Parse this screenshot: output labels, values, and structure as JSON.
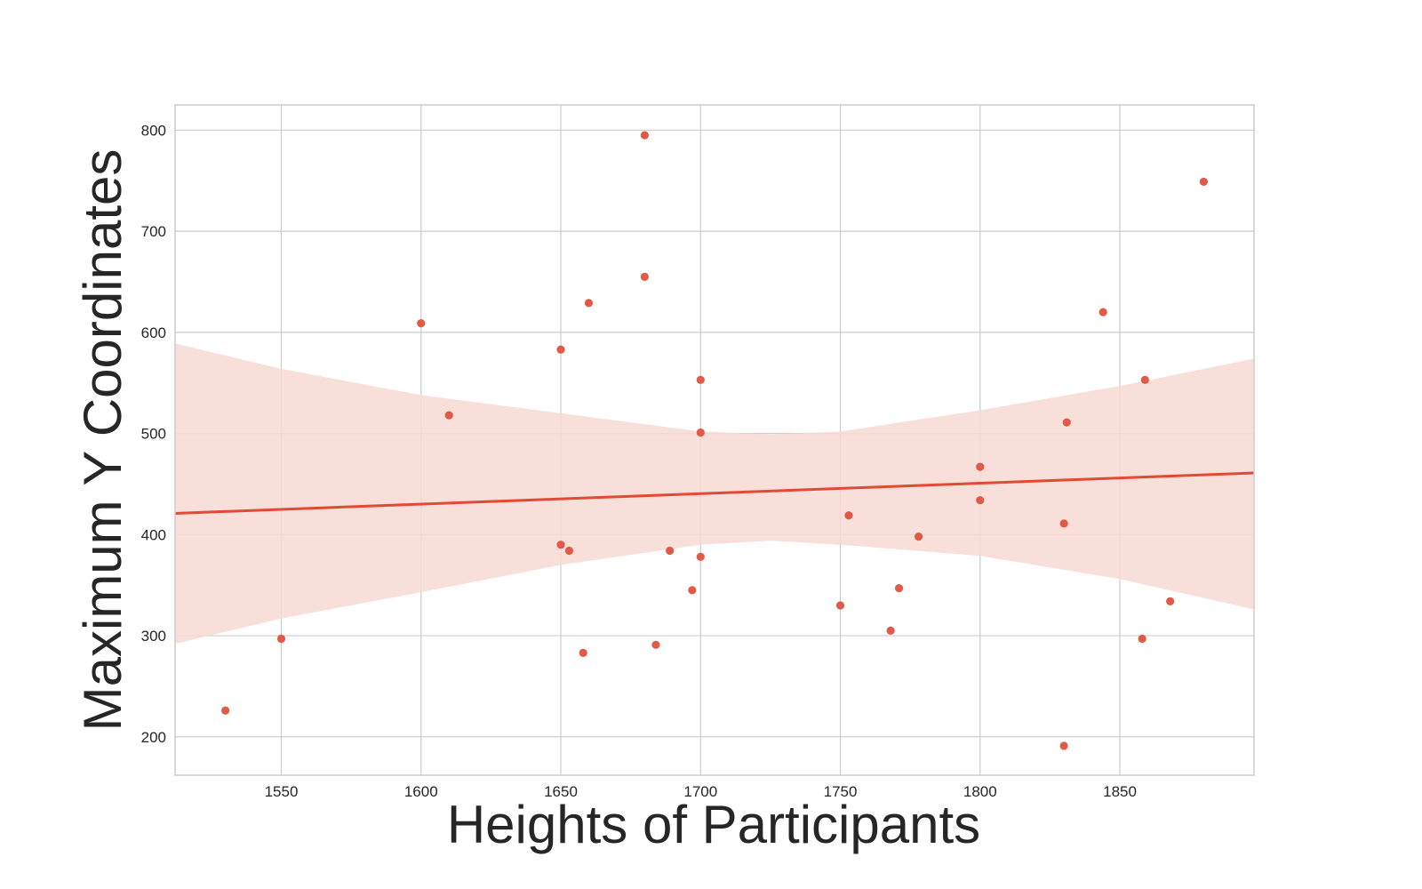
{
  "chart_data": {
    "type": "scatter",
    "title": "",
    "xlabel": "Heights of Participants",
    "ylabel": "Maximum Y Coordinates",
    "xlim": [
      1512,
      1898
    ],
    "ylim": [
      162,
      825
    ],
    "xticks": [
      1550,
      1600,
      1650,
      1700,
      1750,
      1800,
      1850
    ],
    "yticks": [
      200,
      300,
      400,
      500,
      600,
      700,
      800
    ],
    "grid": true,
    "colors": {
      "points": "#e05a47",
      "line": "#e24a33",
      "band": "#f7d9d4",
      "grid": "#cccccc",
      "text": "#262626"
    },
    "points": [
      [
        1530,
        226
      ],
      [
        1550,
        297
      ],
      [
        1600,
        609
      ],
      [
        1610,
        518
      ],
      [
        1650,
        583
      ],
      [
        1650,
        390
      ],
      [
        1653,
        384
      ],
      [
        1658,
        283
      ],
      [
        1660,
        629
      ],
      [
        1680,
        795
      ],
      [
        1680,
        655
      ],
      [
        1684,
        291
      ],
      [
        1689,
        384
      ],
      [
        1697,
        345
      ],
      [
        1700,
        553
      ],
      [
        1700,
        501
      ],
      [
        1700,
        378
      ],
      [
        1750,
        330
      ],
      [
        1753,
        419
      ],
      [
        1768,
        305
      ],
      [
        1771,
        347
      ],
      [
        1778,
        398
      ],
      [
        1800,
        467
      ],
      [
        1800,
        434
      ],
      [
        1830,
        411
      ],
      [
        1830,
        191
      ],
      [
        1831,
        511
      ],
      [
        1844,
        620
      ],
      [
        1858,
        297
      ],
      [
        1859,
        553
      ],
      [
        1868,
        334
      ],
      [
        1880,
        749
      ]
    ],
    "regression_line": {
      "x": [
        1512,
        1898
      ],
      "y": [
        421,
        461
      ]
    },
    "confidence_band": {
      "x": [
        1512,
        1550,
        1600,
        1650,
        1700,
        1725,
        1750,
        1800,
        1850,
        1898
      ],
      "upper": [
        589,
        564,
        538,
        520,
        502,
        499,
        502,
        523,
        547,
        574
      ],
      "lower": [
        292,
        317,
        343,
        370,
        390,
        394,
        390,
        379,
        356,
        326
      ]
    }
  }
}
